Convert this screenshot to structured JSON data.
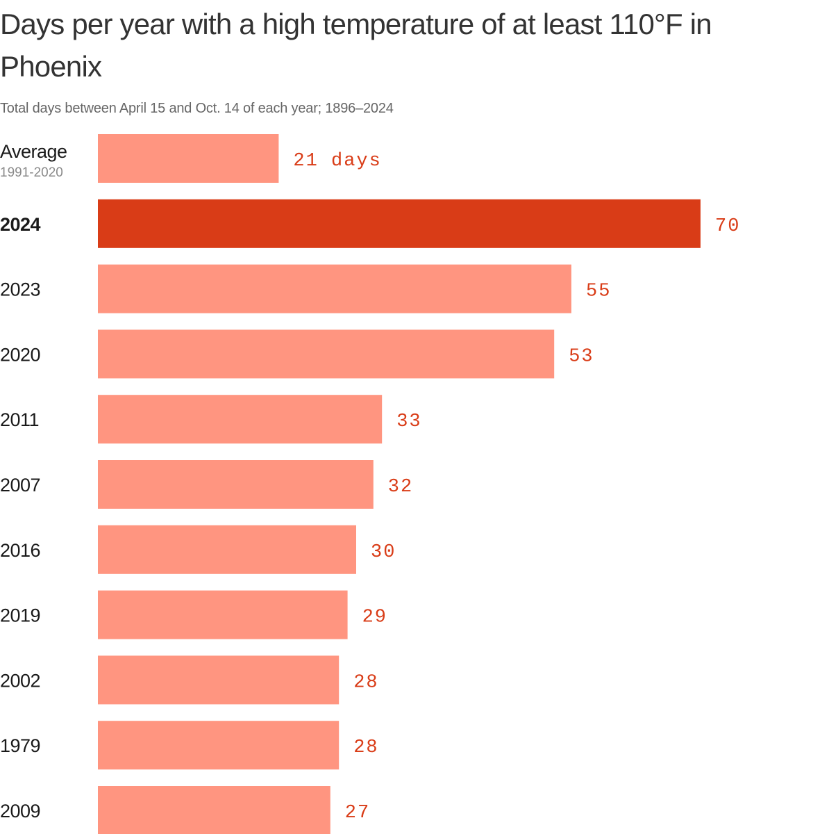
{
  "header": {
    "title": "Days per year with a high temperature of at least 110°F in Phoenix",
    "subtitle": "Total days between April 15 and Oct. 14 of each year; 1896–2024"
  },
  "colors": {
    "bar": "#ff9580",
    "highlight": "#d93c17",
    "value_text": "#d93c17"
  },
  "chart_data": {
    "type": "bar",
    "orientation": "horizontal",
    "categories": [
      "Average",
      "2024",
      "2023",
      "2020",
      "2011",
      "2007",
      "2016",
      "2019",
      "2002",
      "1979",
      "2009"
    ],
    "category_sublabels": [
      "1991-2020",
      "",
      "",
      "",
      "",
      "",
      "",
      "",
      "",
      "",
      ""
    ],
    "values": [
      21,
      70,
      55,
      53,
      33,
      32,
      30,
      29,
      28,
      28,
      27
    ],
    "value_labels": [
      "21 days",
      "70",
      "55",
      "53",
      "33",
      "32",
      "30",
      "29",
      "28",
      "28",
      "27"
    ],
    "highlight": "2024",
    "title": "Days per year with a high temperature of at least 110°F in Phoenix",
    "subtitle": "Total days between April 15 and Oct. 14 of each year; 1896–2024",
    "xlim": [
      0,
      70
    ],
    "grid": false,
    "legend": "none"
  }
}
